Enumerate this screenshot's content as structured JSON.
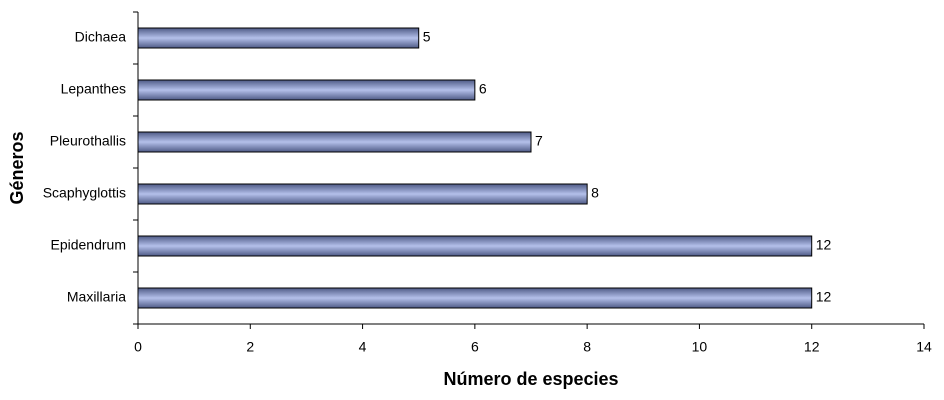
{
  "chart_data": {
    "type": "bar",
    "orientation": "horizontal",
    "x_label": "Número de especies",
    "y_label": "Géneros",
    "categories": [
      "Dichaea",
      "Lepanthes",
      "Pleurothallis",
      "Scaphyglottis",
      "Epidendrum",
      "Maxillaria"
    ],
    "values": [
      5,
      6,
      7,
      8,
      12,
      12
    ],
    "color": "#b4c0ea",
    "xlim": [
      0,
      14
    ],
    "xticks": [
      0,
      2,
      4,
      6,
      8,
      10,
      12,
      14
    ]
  }
}
